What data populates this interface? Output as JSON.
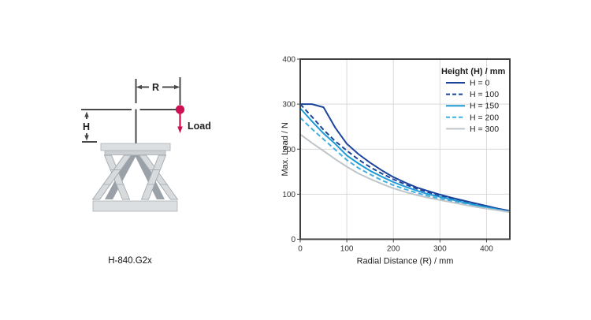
{
  "diagram": {
    "labels": {
      "radius": "R",
      "height": "H",
      "load": "Load"
    },
    "caption": "H-840.G2x",
    "colors": {
      "dimension_line": "#4a4a4a",
      "load_marker": "#cd1053",
      "platform_fill": "#dcdfe1",
      "subplate_fill": "#ccd0d3",
      "platform_stroke": "#aab0b5",
      "leg_fill": "#d8dbdd",
      "leg_stroke": "#a3a9ae",
      "leg_back_fill": "#9aa1a8"
    }
  },
  "chart_data": {
    "type": "line",
    "title": "",
    "xlabel": "Radial Distance (R) / mm",
    "ylabel": "Max. Load / N",
    "xlim": [
      0,
      450
    ],
    "ylim": [
      0,
      400
    ],
    "x_ticks": [
      0,
      100,
      200,
      300,
      400
    ],
    "y_ticks": [
      0,
      100,
      200,
      300,
      400
    ],
    "grid": true,
    "legend_position": "top-right",
    "legend_title": "Height (H) / mm",
    "x": [
      0,
      25,
      50,
      75,
      100,
      125,
      150,
      175,
      200,
      225,
      250,
      275,
      300,
      325,
      350,
      375,
      400,
      425,
      450
    ],
    "series": [
      {
        "name": "H = 0",
        "color": "#1c449b",
        "dash": "solid",
        "values": [
          300,
          300,
          293,
          248,
          212,
          189,
          170,
          153,
          138,
          126,
          115,
          107,
          99,
          92,
          86,
          80,
          74,
          68,
          63
        ]
      },
      {
        "name": "H = 100",
        "color": "#1c449b",
        "dash": "dashed",
        "values": [
          300,
          272,
          243,
          218,
          197,
          177,
          160,
          146,
          133,
          122,
          112,
          104,
          97,
          90,
          84,
          78,
          73,
          67,
          62
        ]
      },
      {
        "name": "H = 150",
        "color": "#1d9ad6",
        "dash": "solid",
        "values": [
          291,
          262,
          235,
          212,
          186,
          168,
          152,
          139,
          127,
          117,
          108,
          100,
          94,
          88,
          82,
          76,
          71,
          66,
          61
        ]
      },
      {
        "name": "H = 200",
        "color": "#41aee0",
        "dash": "dashed",
        "values": [
          270,
          245,
          222,
          199,
          176,
          158,
          144,
          131,
          120,
          111,
          103,
          96,
          90,
          85,
          79,
          74,
          69,
          65,
          61
        ]
      },
      {
        "name": "H = 300",
        "color": "#bfc5c9",
        "dash": "solid",
        "values": [
          233,
          214,
          196,
          178,
          161,
          146,
          134,
          123,
          113,
          105,
          98,
          92,
          87,
          82,
          77,
          72,
          68,
          64,
          60
        ]
      }
    ],
    "frame_color": "#404040",
    "grid_color": "#d9d9d9",
    "tick_label_color": "#333333",
    "axis_title_color": "#1f1f1f"
  }
}
